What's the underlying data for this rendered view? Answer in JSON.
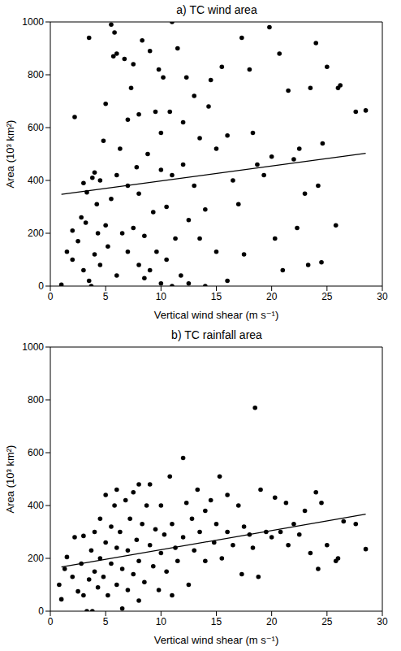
{
  "chart_data": [
    {
      "type": "scatter",
      "title": "a) TC wind area",
      "x_label": "Vertical wind shear (m s⁻¹)",
      "y_label": "Area (10³ km²)",
      "xlim": [
        0,
        30
      ],
      "xticks": [
        0,
        5,
        10,
        15,
        20,
        25,
        30
      ],
      "ylim": [
        0,
        1000
      ],
      "yticks": [
        0,
        200,
        400,
        600,
        800,
        1000
      ],
      "color": "#000000",
      "marker": "circle",
      "x": [
        1,
        1.5,
        2,
        2,
        2.2,
        2.5,
        2.8,
        3,
        3,
        3.2,
        3.3,
        3.5,
        3.5,
        3.7,
        3.8,
        4,
        4,
        4.2,
        4.3,
        4.5,
        4.5,
        4.8,
        5,
        5,
        5.2,
        5.5,
        5.5,
        5.7,
        5.8,
        6,
        6,
        6,
        6.3,
        6.5,
        6.7,
        7,
        7,
        7,
        7.3,
        7.5,
        7.5,
        7.8,
        8,
        8,
        8,
        8.3,
        8.5,
        8.5,
        8.8,
        9,
        9,
        9.3,
        9.5,
        9.6,
        9.8,
        10,
        10,
        10,
        10.2,
        10.5,
        10.5,
        10.8,
        11,
        11,
        11,
        11.3,
        11.5,
        11.8,
        12,
        12,
        12.3,
        12.5,
        12.5,
        13,
        13,
        13.5,
        13.5,
        14,
        14,
        14.3,
        14.5,
        15,
        15,
        15.5,
        16,
        16,
        16.5,
        17,
        17.3,
        17.5,
        18,
        18.3,
        18.7,
        19.3,
        19.8,
        20,
        20.3,
        20.7,
        21,
        21.5,
        22,
        22.3,
        22.5,
        23,
        23.3,
        23.5,
        24,
        24.2,
        24.5,
        24.6,
        25,
        25.8,
        26,
        26.2,
        27.6,
        28.5
      ],
      "values": [
        5,
        130,
        100,
        210,
        640,
        170,
        260,
        390,
        60,
        240,
        355,
        20,
        940,
        0,
        410,
        120,
        430,
        310,
        200,
        80,
        400,
        550,
        230,
        690,
        150,
        330,
        990,
        870,
        960,
        40,
        420,
        880,
        520,
        200,
        860,
        130,
        380,
        630,
        750,
        220,
        840,
        450,
        80,
        350,
        650,
        930,
        30,
        190,
        500,
        890,
        60,
        280,
        660,
        130,
        820,
        10,
        440,
        580,
        790,
        100,
        300,
        660,
        0,
        420,
        1000,
        180,
        900,
        40,
        460,
        620,
        790,
        250,
        10,
        720,
        380,
        180,
        560,
        0,
        290,
        680,
        780,
        520,
        130,
        830,
        570,
        20,
        400,
        310,
        940,
        120,
        820,
        580,
        460,
        420,
        980,
        490,
        180,
        880,
        60,
        740,
        480,
        220,
        520,
        350,
        80,
        750,
        920,
        380,
        90,
        540,
        830,
        230,
        750,
        760,
        660,
        665
      ],
      "fit": {
        "x": [
          1,
          28.5
        ],
        "values": [
          347,
          503
        ]
      }
    },
    {
      "type": "scatter",
      "title": "b) TC rainfall area",
      "x_label": "Vertical wind shear (m s⁻¹)",
      "y_label": "Area (10³ km²)",
      "xlim": [
        0,
        30
      ],
      "xticks": [
        0,
        5,
        10,
        15,
        20,
        25,
        30
      ],
      "ylim": [
        0,
        1000
      ],
      "yticks": [
        0,
        200,
        400,
        600,
        800,
        1000
      ],
      "color": "#000000",
      "marker": "circle",
      "x": [
        0.8,
        1,
        1.3,
        1.5,
        2,
        2.2,
        2.5,
        2.8,
        3,
        3,
        3.3,
        3.5,
        3.7,
        3.8,
        4,
        4,
        4.3,
        4.5,
        4.5,
        4.8,
        5,
        5,
        5.2,
        5.5,
        5.5,
        5.8,
        6,
        6,
        6,
        6.3,
        6.5,
        6.5,
        6.8,
        7,
        7,
        7.2,
        7.5,
        7.5,
        7.8,
        8,
        8,
        8,
        8.3,
        8.5,
        8.7,
        9,
        9,
        9.3,
        9.5,
        9.8,
        10,
        10,
        10.3,
        10.5,
        10.8,
        11,
        11,
        11.3,
        11.5,
        12,
        12,
        12.3,
        12.5,
        12.8,
        13,
        13.3,
        13.5,
        14,
        14,
        14.5,
        14.8,
        15,
        15.3,
        15.5,
        16,
        16,
        16.5,
        17,
        17.3,
        17.5,
        18,
        18.3,
        18.5,
        18.8,
        19,
        19.5,
        20,
        20.3,
        20.8,
        21.3,
        21.5,
        22,
        22.5,
        23,
        23.5,
        24,
        24.2,
        24.5,
        25,
        25.8,
        26,
        26.5,
        27.6,
        28.5
      ],
      "values": [
        100,
        45,
        160,
        205,
        130,
        280,
        75,
        180,
        285,
        60,
        0,
        120,
        230,
        0,
        150,
        300,
        90,
        200,
        350,
        130,
        260,
        440,
        60,
        320,
        180,
        400,
        100,
        240,
        460,
        300,
        10,
        160,
        420,
        230,
        80,
        350,
        450,
        140,
        270,
        480,
        190,
        40,
        330,
        110,
        400,
        250,
        480,
        170,
        310,
        80,
        220,
        400,
        290,
        150,
        510,
        330,
        60,
        240,
        190,
        580,
        280,
        410,
        100,
        350,
        230,
        460,
        300,
        190,
        380,
        420,
        260,
        330,
        510,
        200,
        300,
        440,
        250,
        400,
        140,
        320,
        290,
        240,
        770,
        130,
        460,
        300,
        280,
        430,
        300,
        410,
        250,
        330,
        290,
        380,
        220,
        450,
        160,
        410,
        250,
        190,
        200,
        340,
        330,
        235
      ],
      "fit": {
        "x": [
          1,
          28.5
        ],
        "values": [
          167,
          367
        ]
      }
    }
  ]
}
